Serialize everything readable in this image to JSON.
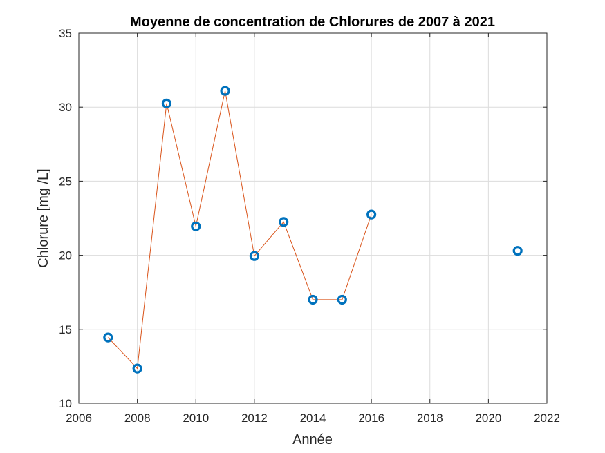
{
  "chart_data": {
    "type": "line",
    "title": "Moyenne de concentration de Chlorures de 2007 à 2021",
    "xlabel": "Année",
    "ylabel": "Chlorure [mg /L]",
    "xlim": [
      2006,
      2022
    ],
    "ylim": [
      10,
      35
    ],
    "xticks": [
      2006,
      2008,
      2010,
      2012,
      2014,
      2016,
      2018,
      2020,
      2022
    ],
    "yticks": [
      10,
      15,
      20,
      25,
      30,
      35
    ],
    "grid": true,
    "legend": "none",
    "series": [
      {
        "marker": "circle",
        "marker_color": "#0072BD",
        "line_color": "#D95319",
        "x": [
          2007,
          2008,
          2009,
          2010,
          2011,
          2012,
          2013,
          2014,
          2015,
          2016,
          2021
        ],
        "y": [
          14.45,
          12.35,
          30.25,
          21.95,
          31.1,
          19.95,
          22.25,
          17.0,
          17.0,
          22.75,
          20.3
        ],
        "line_segments": [
          [
            0,
            9
          ]
        ]
      }
    ]
  }
}
